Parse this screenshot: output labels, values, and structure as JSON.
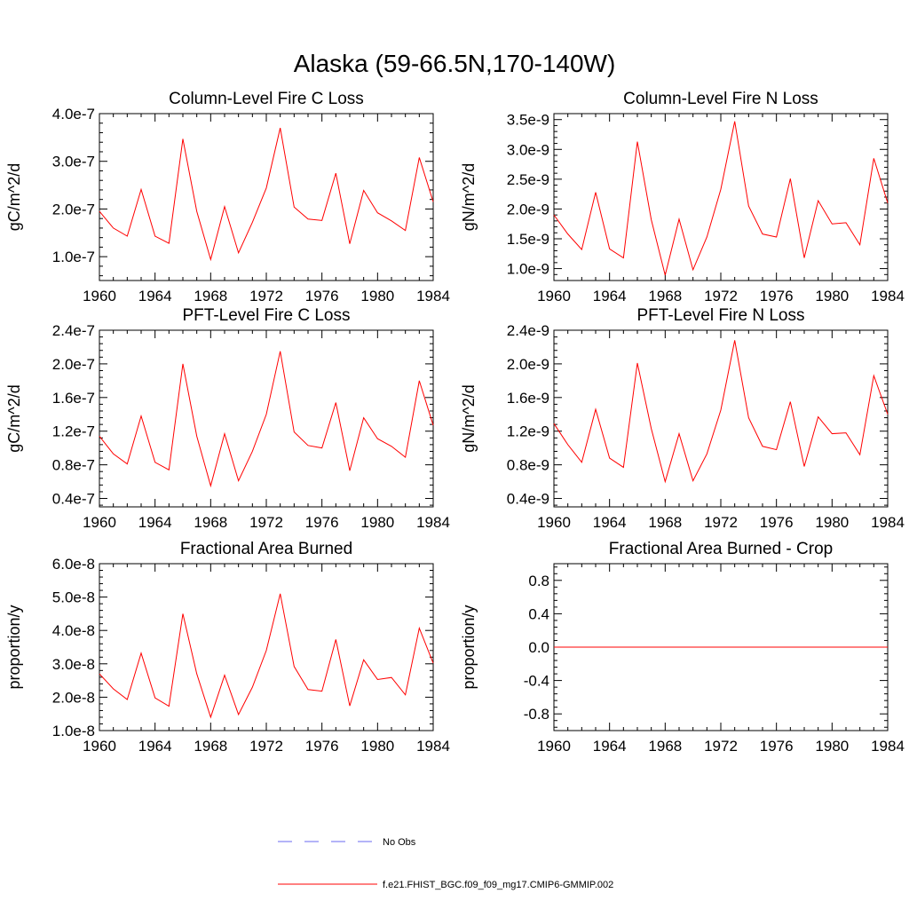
{
  "figure": {
    "title": "Alaska (59-66.5N,170-140W)"
  },
  "chart_data": [
    {
      "type": "line",
      "title": "Column-Level Fire C Loss",
      "xlabel": "",
      "ylabel": "gC/m^2/d",
      "xlim": [
        1960,
        1984
      ],
      "ylim": [
        5e-08,
        4e-07
      ],
      "xticks": [
        1960,
        1964,
        1968,
        1972,
        1976,
        1980,
        1984
      ],
      "xtick_labels": [
        "1960",
        "1964",
        "1968",
        "1972",
        "1976",
        "1980",
        "1984"
      ],
      "yticks": [
        1e-07,
        2e-07,
        3e-07,
        4e-07
      ],
      "ytick_labels": [
        "1.0e-7",
        "2.0e-7",
        "3.0e-7",
        "4.0e-7"
      ],
      "series": [
        {
          "name": "f.e21.FHIST_BGC.f09_f09_mg17.CMIP6-GMMIP.002",
          "color": "#ff0000",
          "x": [
            1960,
            1961,
            1962,
            1963,
            1964,
            1965,
            1966,
            1967,
            1968,
            1969,
            1970,
            1971,
            1972,
            1973,
            1974,
            1975,
            1976,
            1977,
            1978,
            1979,
            1980,
            1981,
            1982,
            1983,
            1984
          ],
          "y": [
            1.95e-07,
            1.6e-07,
            1.43e-07,
            2.41e-07,
            1.43e-07,
            1.28e-07,
            3.47e-07,
            1.95e-07,
            9.4e-08,
            2.05e-07,
            1.08e-07,
            1.72e-07,
            2.44e-07,
            3.7e-07,
            2.04e-07,
            1.79e-07,
            1.76e-07,
            2.75e-07,
            1.27e-07,
            2.39e-07,
            1.92e-07,
            1.75e-07,
            1.55e-07,
            3.08e-07,
            2.15e-07
          ]
        }
      ]
    },
    {
      "type": "line",
      "title": "Column-Level Fire N Loss",
      "xlabel": "",
      "ylabel": "gN/m^2/d",
      "xlim": [
        1960,
        1984
      ],
      "ylim": [
        8e-10,
        3.6e-09
      ],
      "xticks": [
        1960,
        1964,
        1968,
        1972,
        1976,
        1980,
        1984
      ],
      "xtick_labels": [
        "1960",
        "1964",
        "1968",
        "1972",
        "1976",
        "1980",
        "1984"
      ],
      "yticks": [
        1e-09,
        1.5e-09,
        2e-09,
        2.5e-09,
        3e-09,
        3.5e-09
      ],
      "ytick_labels": [
        "1.0e-9",
        "1.5e-9",
        "2.0e-9",
        "2.5e-9",
        "3.0e-9",
        "3.5e-9"
      ],
      "series": [
        {
          "name": "f.e21.FHIST_BGC.f09_f09_mg17.CMIP6-GMMIP.002",
          "color": "#ff0000",
          "x": [
            1960,
            1961,
            1962,
            1963,
            1964,
            1965,
            1966,
            1967,
            1968,
            1969,
            1970,
            1971,
            1972,
            1973,
            1974,
            1975,
            1976,
            1977,
            1978,
            1979,
            1980,
            1981,
            1982,
            1983,
            1984
          ],
          "y": [
            1.9e-09,
            1.58e-09,
            1.32e-09,
            2.28e-09,
            1.33e-09,
            1.18e-09,
            3.13e-09,
            1.82e-09,
            8.9e-10,
            1.83e-09,
            9.8e-10,
            1.53e-09,
            2.33e-09,
            3.47e-09,
            2.05e-09,
            1.58e-09,
            1.53e-09,
            2.51e-09,
            1.18e-09,
            2.14e-09,
            1.75e-09,
            1.77e-09,
            1.4e-09,
            2.85e-09,
            2.1e-09
          ]
        }
      ]
    },
    {
      "type": "line",
      "title": "PFT-Level Fire C Loss",
      "xlabel": "",
      "ylabel": "gC/m^2/d",
      "xlim": [
        1960,
        1984
      ],
      "ylim": [
        3e-08,
        2.4e-07
      ],
      "xticks": [
        1960,
        1964,
        1968,
        1972,
        1976,
        1980,
        1984
      ],
      "xtick_labels": [
        "1960",
        "1964",
        "1968",
        "1972",
        "1976",
        "1980",
        "1984"
      ],
      "yticks": [
        4e-08,
        8e-08,
        1.2e-07,
        1.6e-07,
        2e-07,
        2.4e-07
      ],
      "ytick_labels": [
        "0.4e-7",
        "0.8e-7",
        "1.2e-7",
        "1.6e-7",
        "2.0e-7",
        "2.4e-7"
      ],
      "series": [
        {
          "name": "f.e21.FHIST_BGC.f09_f09_mg17.CMIP6-GMMIP.002",
          "color": "#ff0000",
          "x": [
            1960,
            1961,
            1962,
            1963,
            1964,
            1965,
            1966,
            1967,
            1968,
            1969,
            1970,
            1971,
            1972,
            1973,
            1974,
            1975,
            1976,
            1977,
            1978,
            1979,
            1980,
            1981,
            1982,
            1983,
            1984
          ],
          "y": [
            1.14e-07,
            9.3e-08,
            8.1e-08,
            1.38e-07,
            8.3e-08,
            7.4e-08,
            2e-07,
            1.14e-07,
            5.5e-08,
            1.17e-07,
            6.1e-08,
            9.6e-08,
            1.4e-07,
            2.15e-07,
            1.19e-07,
            1.03e-07,
            1e-07,
            1.54e-07,
            7.3e-08,
            1.36e-07,
            1.11e-07,
            1.02e-07,
            8.9e-08,
            1.8e-07,
            1.27e-07
          ]
        }
      ]
    },
    {
      "type": "line",
      "title": "PFT-Level Fire N Loss",
      "xlabel": "",
      "ylabel": "gN/m^2/d",
      "xlim": [
        1960,
        1984
      ],
      "ylim": [
        3e-10,
        2.4e-09
      ],
      "xticks": [
        1960,
        1964,
        1968,
        1972,
        1976,
        1980,
        1984
      ],
      "xtick_labels": [
        "1960",
        "1964",
        "1968",
        "1972",
        "1976",
        "1980",
        "1984"
      ],
      "yticks": [
        4e-10,
        8e-10,
        1.2e-09,
        1.6e-09,
        2e-09,
        2.4e-09
      ],
      "ytick_labels": [
        "0.4e-9",
        "0.8e-9",
        "1.2e-9",
        "1.6e-9",
        "2.0e-9",
        "2.4e-9"
      ],
      "series": [
        {
          "name": "f.e21.FHIST_BGC.f09_f09_mg17.CMIP6-GMMIP.002",
          "color": "#ff0000",
          "x": [
            1960,
            1961,
            1962,
            1963,
            1964,
            1965,
            1966,
            1967,
            1968,
            1969,
            1970,
            1971,
            1972,
            1973,
            1974,
            1975,
            1976,
            1977,
            1978,
            1979,
            1980,
            1981,
            1982,
            1983,
            1984
          ],
          "y": [
            1.29e-09,
            1.04e-09,
            8.3e-10,
            1.46e-09,
            8.8e-10,
            7.7e-10,
            2.01e-09,
            1.23e-09,
            6e-10,
            1.17e-09,
            6.1e-10,
            9.3e-10,
            1.45e-09,
            2.28e-09,
            1.36e-09,
            1.02e-09,
            9.8e-10,
            1.55e-09,
            7.8e-10,
            1.37e-09,
            1.17e-09,
            1.18e-09,
            9.2e-10,
            1.86e-09,
            1.4e-09
          ]
        }
      ]
    },
    {
      "type": "line",
      "title": "Fractional Area Burned",
      "xlabel": "",
      "ylabel": "proportion/y",
      "xlim": [
        1960,
        1984
      ],
      "ylim": [
        1e-08,
        6e-08
      ],
      "xticks": [
        1960,
        1964,
        1968,
        1972,
        1976,
        1980,
        1984
      ],
      "xtick_labels": [
        "1960",
        "1964",
        "1968",
        "1972",
        "1976",
        "1980",
        "1984"
      ],
      "yticks": [
        1e-08,
        2e-08,
        3e-08,
        4e-08,
        5e-08,
        6e-08
      ],
      "ytick_labels": [
        "1.0e-8",
        "2.0e-8",
        "3.0e-8",
        "4.0e-8",
        "5.0e-8",
        "6.0e-8"
      ],
      "series": [
        {
          "name": "f.e21.FHIST_BGC.f09_f09_mg17.CMIP6-GMMIP.002",
          "color": "#ff0000",
          "x": [
            1960,
            1961,
            1962,
            1963,
            1964,
            1965,
            1966,
            1967,
            1968,
            1969,
            1970,
            1971,
            1972,
            1973,
            1974,
            1975,
            1976,
            1977,
            1978,
            1979,
            1980,
            1981,
            1982,
            1983,
            1984
          ],
          "y": [
            2.7e-08,
            2.25e-08,
            1.93e-08,
            3.32e-08,
            1.98e-08,
            1.73e-08,
            4.5e-08,
            2.7e-08,
            1.4e-08,
            2.66e-08,
            1.48e-08,
            2.3e-08,
            3.4e-08,
            5.1e-08,
            2.92e-08,
            2.23e-08,
            2.18e-08,
            3.73e-08,
            1.74e-08,
            3.12e-08,
            2.53e-08,
            2.59e-08,
            2.07e-08,
            4.07e-08,
            3.02e-08
          ]
        }
      ]
    },
    {
      "type": "line",
      "title": "Fractional Area Burned - Crop",
      "xlabel": "",
      "ylabel": "proportion/y",
      "xlim": [
        1960,
        1984
      ],
      "ylim": [
        -1.0,
        1.0
      ],
      "xticks": [
        1960,
        1964,
        1968,
        1972,
        1976,
        1980,
        1984
      ],
      "xtick_labels": [
        "1960",
        "1964",
        "1968",
        "1972",
        "1976",
        "1980",
        "1984"
      ],
      "yticks": [
        -0.8,
        -0.4,
        0.0,
        0.4,
        0.8
      ],
      "ytick_labels": [
        "-0.8",
        "-0.4",
        "0.0",
        "0.4",
        "0.8"
      ],
      "series": [
        {
          "name": "f.e21.FHIST_BGC.f09_f09_mg17.CMIP6-GMMIP.002",
          "color": "#ff0000",
          "x": [
            1960,
            1984
          ],
          "y": [
            0.0,
            0.0
          ]
        }
      ]
    }
  ],
  "legend": {
    "entries": [
      {
        "label": "No Obs",
        "color": "#6a6af0",
        "style": "dashed"
      },
      {
        "label": "f.e21.FHIST_BGC.f09_f09_mg17.CMIP6-GMMIP.002",
        "color": "#ff0000",
        "style": "solid"
      }
    ]
  }
}
